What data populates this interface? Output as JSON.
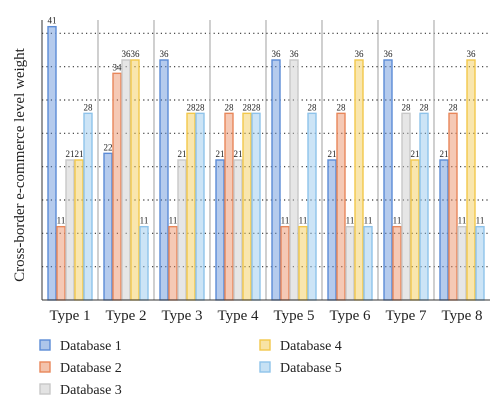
{
  "chart_data": {
    "type": "bar",
    "ylabel": "Cross-border e-commerce level weight",
    "xlabel": "",
    "categories": [
      "Type 1",
      "Type 2",
      "Type 3",
      "Type 4",
      "Type 5",
      "Type 6",
      "Type 7",
      "Type 8"
    ],
    "ylim": [
      0,
      42
    ],
    "grid": "horizontal dotted",
    "legend_position": "bottom",
    "series": [
      {
        "name": "Database 1",
        "color": "#5b8bd6",
        "values": [
          41,
          22,
          36,
          21,
          36,
          21,
          36,
          21
        ]
      },
      {
        "name": "Database 2",
        "color": "#e8875a",
        "values": [
          11,
          34,
          11,
          28,
          11,
          28,
          11,
          28
        ]
      },
      {
        "name": "Database 3",
        "color": "#c8c8c8",
        "values": [
          21,
          36,
          21,
          21,
          36,
          11,
          28,
          11
        ]
      },
      {
        "name": "Database 4",
        "color": "#f2c84b",
        "values": [
          21,
          36,
          28,
          28,
          11,
          36,
          21,
          36
        ]
      },
      {
        "name": "Database 5",
        "color": "#8ec3ea",
        "values": [
          28,
          11,
          28,
          28,
          28,
          11,
          28,
          11
        ]
      }
    ]
  }
}
